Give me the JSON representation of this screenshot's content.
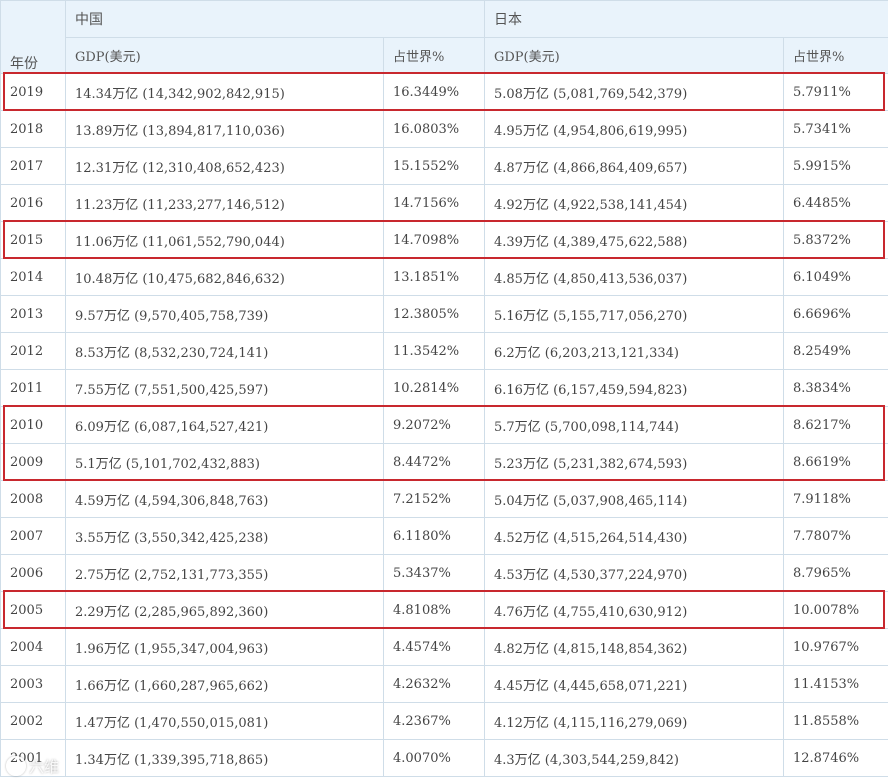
{
  "header": {
    "year": "年份",
    "china": "中国",
    "japan": "日本",
    "gdp": "GDP(美元)",
    "share": "占世界%"
  },
  "rows": [
    {
      "year": "2019",
      "cn_gdp": "14.34万亿 (14,342,902,842,915)",
      "cn_pct": "16.3449%",
      "jp_gdp": "5.08万亿 (5,081,769,542,379)",
      "jp_pct": "5.7911%"
    },
    {
      "year": "2018",
      "cn_gdp": "13.89万亿 (13,894,817,110,036)",
      "cn_pct": "16.0803%",
      "jp_gdp": "4.95万亿 (4,954,806,619,995)",
      "jp_pct": "5.7341%"
    },
    {
      "year": "2017",
      "cn_gdp": "12.31万亿 (12,310,408,652,423)",
      "cn_pct": "15.1552%",
      "jp_gdp": "4.87万亿 (4,866,864,409,657)",
      "jp_pct": "5.9915%"
    },
    {
      "year": "2016",
      "cn_gdp": "11.23万亿 (11,233,277,146,512)",
      "cn_pct": "14.7156%",
      "jp_gdp": "4.92万亿 (4,922,538,141,454)",
      "jp_pct": "6.4485%"
    },
    {
      "year": "2015",
      "cn_gdp": "11.06万亿 (11,061,552,790,044)",
      "cn_pct": "14.7098%",
      "jp_gdp": "4.39万亿 (4,389,475,622,588)",
      "jp_pct": "5.8372%"
    },
    {
      "year": "2014",
      "cn_gdp": "10.48万亿 (10,475,682,846,632)",
      "cn_pct": "13.1851%",
      "jp_gdp": "4.85万亿 (4,850,413,536,037)",
      "jp_pct": "6.1049%"
    },
    {
      "year": "2013",
      "cn_gdp": "9.57万亿 (9,570,405,758,739)",
      "cn_pct": "12.3805%",
      "jp_gdp": "5.16万亿 (5,155,717,056,270)",
      "jp_pct": "6.6696%"
    },
    {
      "year": "2012",
      "cn_gdp": "8.53万亿 (8,532,230,724,141)",
      "cn_pct": "11.3542%",
      "jp_gdp": "6.2万亿 (6,203,213,121,334)",
      "jp_pct": "8.2549%"
    },
    {
      "year": "2011",
      "cn_gdp": "7.55万亿 (7,551,500,425,597)",
      "cn_pct": "10.2814%",
      "jp_gdp": "6.16万亿 (6,157,459,594,823)",
      "jp_pct": "8.3834%"
    },
    {
      "year": "2010",
      "cn_gdp": "6.09万亿 (6,087,164,527,421)",
      "cn_pct": "9.2072%",
      "jp_gdp": "5.7万亿 (5,700,098,114,744)",
      "jp_pct": "8.6217%"
    },
    {
      "year": "2009",
      "cn_gdp": "5.1万亿 (5,101,702,432,883)",
      "cn_pct": "8.4472%",
      "jp_gdp": "5.23万亿 (5,231,382,674,593)",
      "jp_pct": "8.6619%"
    },
    {
      "year": "2008",
      "cn_gdp": "4.59万亿 (4,594,306,848,763)",
      "cn_pct": "7.2152%",
      "jp_gdp": "5.04万亿 (5,037,908,465,114)",
      "jp_pct": "7.9118%"
    },
    {
      "year": "2007",
      "cn_gdp": "3.55万亿 (3,550,342,425,238)",
      "cn_pct": "6.1180%",
      "jp_gdp": "4.52万亿 (4,515,264,514,430)",
      "jp_pct": "7.7807%"
    },
    {
      "year": "2006",
      "cn_gdp": "2.75万亿 (2,752,131,773,355)",
      "cn_pct": "5.3437%",
      "jp_gdp": "4.53万亿 (4,530,377,224,970)",
      "jp_pct": "8.7965%"
    },
    {
      "year": "2005",
      "cn_gdp": "2.29万亿 (2,285,965,892,360)",
      "cn_pct": "4.8108%",
      "jp_gdp": "4.76万亿 (4,755,410,630,912)",
      "jp_pct": "10.0078%"
    },
    {
      "year": "2004",
      "cn_gdp": "1.96万亿 (1,955,347,004,963)",
      "cn_pct": "4.4574%",
      "jp_gdp": "4.82万亿 (4,815,148,854,362)",
      "jp_pct": "10.9767%"
    },
    {
      "year": "2003",
      "cn_gdp": "1.66万亿 (1,660,287,965,662)",
      "cn_pct": "4.2632%",
      "jp_gdp": "4.45万亿 (4,445,658,071,221)",
      "jp_pct": "11.4153%"
    },
    {
      "year": "2002",
      "cn_gdp": "1.47万亿 (1,470,550,015,081)",
      "cn_pct": "4.2367%",
      "jp_gdp": "4.12万亿 (4,115,116,279,069)",
      "jp_pct": "11.8558%"
    },
    {
      "year": "2001",
      "cn_gdp": "1.34万亿 (1,339,395,718,865)",
      "cn_pct": "4.0070%",
      "jp_gdp": "4.3万亿 (4,303,544,259,842)",
      "jp_pct": "12.8746%"
    }
  ],
  "highlighted_years": [
    "2019",
    "2015",
    "2010",
    "2009",
    "2005"
  ],
  "highlight_color": "#c8282e",
  "watermark": "六维",
  "watermark_icon": "circle-logo-icon"
}
